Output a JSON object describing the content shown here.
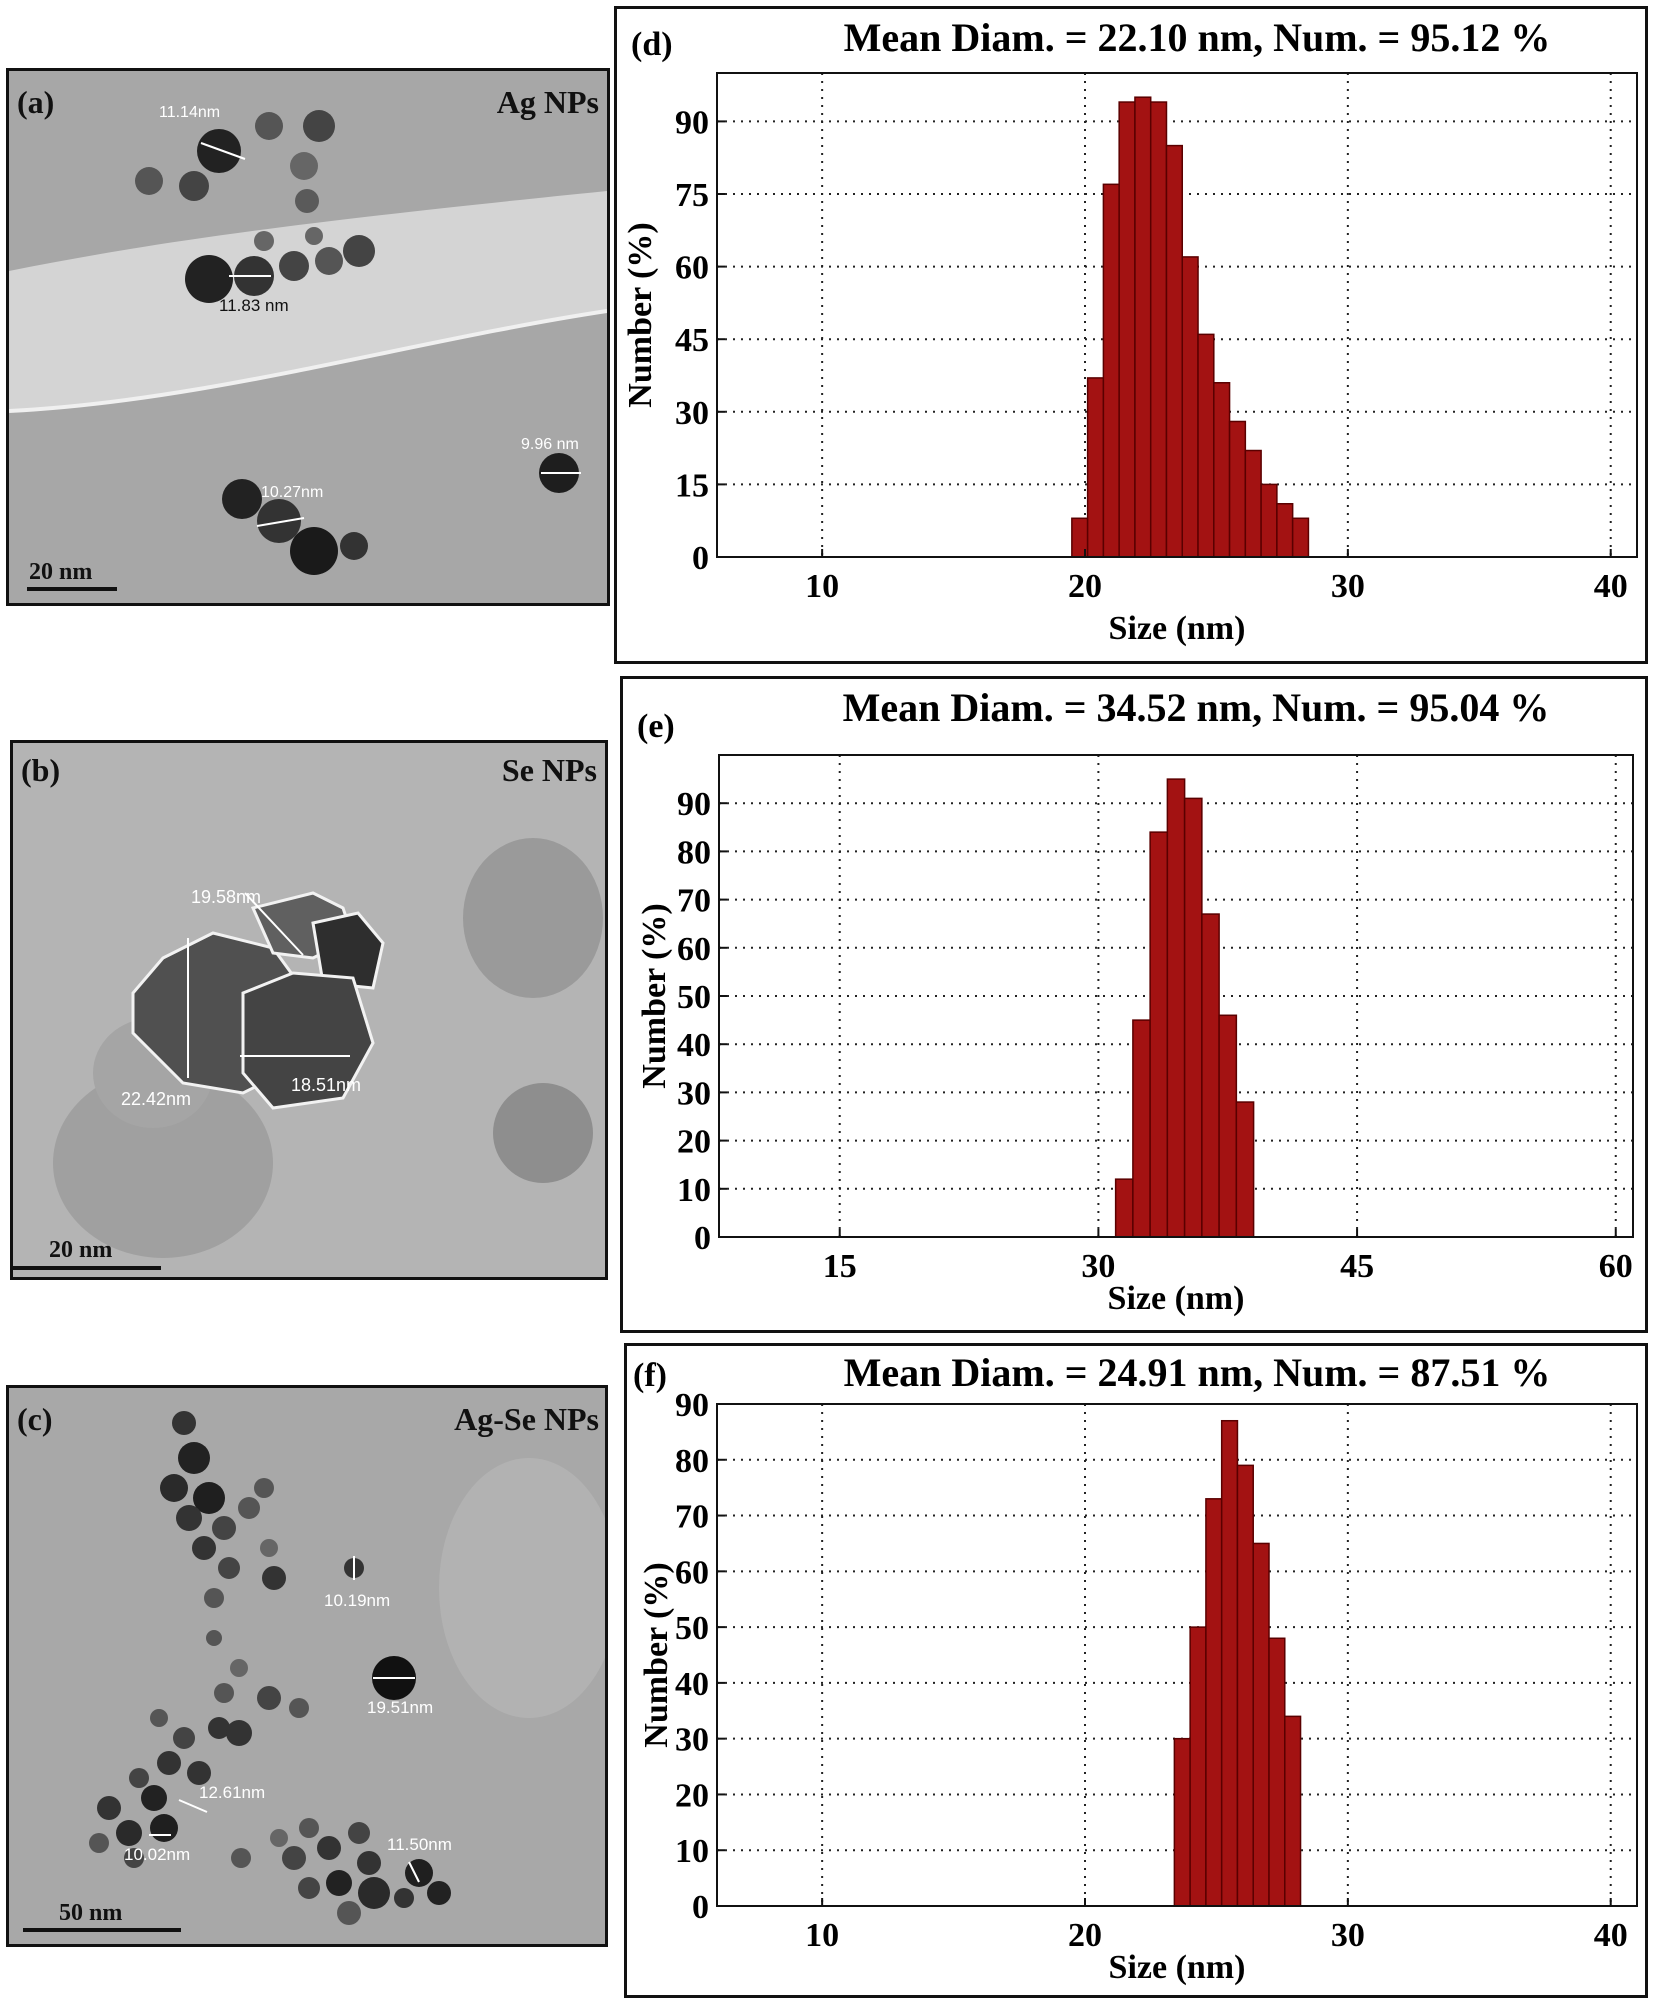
{
  "tem_panels": [
    {
      "id": "a",
      "label": "(a)",
      "material": "Ag NPs",
      "scale_bar": "20 nm",
      "measurements": [
        "11.14nm",
        "11.83 nm",
        "9.96 nm",
        "10.27nm"
      ]
    },
    {
      "id": "b",
      "label": "(b)",
      "material": "Se NPs",
      "scale_bar": "20 nm",
      "measurements": [
        "19.58nm",
        "22.42nm",
        "18.51nm"
      ]
    },
    {
      "id": "c",
      "label": "(c)",
      "material": "Ag-Se NPs",
      "scale_bar": "50 nm",
      "measurements": [
        "10.19nm",
        "19.51nm",
        "12.61nm",
        "10.02nm",
        "11.50nm"
      ]
    }
  ],
  "colors": {
    "bar_fill": "#a31212",
    "bar_edge": "#5a0000",
    "tem_background": "#a9a9a9"
  },
  "chart_data": [
    {
      "type": "bar",
      "panel_label": "(d)",
      "title": "Mean Diam. = 22.10 nm, Num. = 95.12 %",
      "xlabel": "Size (nm)",
      "ylabel": "Number (%)",
      "xlim": [
        6,
        41
      ],
      "ylim": [
        0,
        100
      ],
      "xticks": [
        10,
        20,
        30,
        40
      ],
      "yticks": [
        0,
        15,
        30,
        45,
        60,
        75,
        90
      ],
      "bin_width": 0.6,
      "bins_start": [
        19.5,
        20.1,
        20.7,
        21.3,
        21.9,
        22.5,
        23.1,
        23.7,
        24.3,
        24.9,
        25.5,
        26.1,
        26.7,
        27.3,
        27.9,
        28.5
      ],
      "values": [
        8,
        37,
        77,
        94,
        95,
        94,
        85,
        62,
        46,
        36,
        28,
        22,
        15,
        11,
        8,
        0
      ],
      "grid": true
    },
    {
      "type": "bar",
      "panel_label": "(e)",
      "title": "Mean Diam. = 34.52 nm, Num. = 95.04 %",
      "xlabel": "Size (nm)",
      "ylabel": "Number (%)",
      "xlim": [
        8,
        61
      ],
      "ylim": [
        0,
        100
      ],
      "xticks": [
        15,
        30,
        45,
        60
      ],
      "yticks": [
        0,
        10,
        20,
        30,
        40,
        50,
        60,
        70,
        80,
        90
      ],
      "bin_width": 1.0,
      "bins_start": [
        31.0,
        32.0,
        33.0,
        34.0,
        35.0,
        36.0,
        37.0
      ],
      "values": [
        12,
        45,
        84,
        95,
        91,
        67,
        46
      ],
      "extra_bin": {
        "start": 38.0,
        "value": 28
      },
      "grid": true
    },
    {
      "type": "bar",
      "panel_label": "(f)",
      "title": "Mean Diam. =  24.91 nm, Num. = 87.51 %",
      "xlabel": "Size (nm)",
      "ylabel": "Number (%)",
      "xlim": [
        6,
        41
      ],
      "ylim": [
        0,
        90
      ],
      "xticks": [
        10,
        20,
        30,
        40
      ],
      "yticks": [
        0,
        10,
        20,
        30,
        40,
        50,
        60,
        70,
        80,
        90
      ],
      "bin_width": 0.6,
      "bins_start": [
        23.4,
        24.0,
        24.6,
        25.2,
        25.8,
        26.4,
        27.0,
        27.6
      ],
      "values": [
        30,
        50,
        73,
        87,
        79,
        65,
        48,
        34
      ],
      "grid": true
    }
  ]
}
